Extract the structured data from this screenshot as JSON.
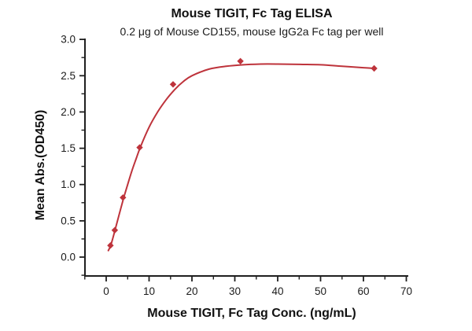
{
  "chart_data": {
    "type": "scatter",
    "title": "Mouse TIGIT, Fc Tag ELISA",
    "subtitle": "0.2 μg of Mouse CD155, mouse IgG2a Fc tag per well",
    "xlabel": "Mouse TIGIT, Fc Tag Conc. (ng/mL)",
    "ylabel": "Mean Abs.(OD450)",
    "xlim": [
      0,
      70
    ],
    "ylim": [
      0.0,
      3.0
    ],
    "grid": false,
    "legend": null,
    "x_major_ticks": [
      0,
      10,
      20,
      30,
      40,
      50,
      60,
      70
    ],
    "x_minor_ticks": [
      -5,
      5,
      15,
      25,
      35,
      45,
      55,
      65
    ],
    "y_major_ticks": [
      {
        "value": 0.0,
        "label": "0.0"
      },
      {
        "value": 0.5,
        "label": "0.5"
      },
      {
        "value": 1.0,
        "label": "1.0"
      },
      {
        "value": 1.5,
        "label": "1.5"
      },
      {
        "value": 2.0,
        "label": "2.0"
      },
      {
        "value": 2.5,
        "label": "2.5"
      },
      {
        "value": 3.0,
        "label": "3.0"
      }
    ],
    "y_minor_ticks": [
      -0.25,
      0.25,
      0.75,
      1.25,
      1.75,
      2.25,
      2.75
    ],
    "marker": "diamond",
    "points": [
      {
        "x": 1.0,
        "y": 0.16
      },
      {
        "x": 2.0,
        "y": 0.37
      },
      {
        "x": 3.9,
        "y": 0.82
      },
      {
        "x": 7.8,
        "y": 1.51
      },
      {
        "x": 15.6,
        "y": 2.38
      },
      {
        "x": 31.3,
        "y": 2.7
      },
      {
        "x": 62.5,
        "y": 2.6
      }
    ],
    "fit_curve": [
      [
        0.5,
        0.09
      ],
      [
        1,
        0.15
      ],
      [
        1.5,
        0.25
      ],
      [
        2,
        0.36
      ],
      [
        3,
        0.58
      ],
      [
        4,
        0.8
      ],
      [
        5,
        1.0
      ],
      [
        6,
        1.19
      ],
      [
        7,
        1.36
      ],
      [
        8,
        1.52
      ],
      [
        10,
        1.79
      ],
      [
        12,
        2.0
      ],
      [
        14,
        2.17
      ],
      [
        16,
        2.31
      ],
      [
        18,
        2.42
      ],
      [
        20,
        2.5
      ],
      [
        24,
        2.59
      ],
      [
        28,
        2.63
      ],
      [
        32,
        2.65
      ],
      [
        36,
        2.66
      ],
      [
        40,
        2.66
      ],
      [
        45,
        2.655
      ],
      [
        50,
        2.65
      ],
      [
        55,
        2.63
      ],
      [
        60,
        2.61
      ],
      [
        62.5,
        2.6
      ]
    ],
    "colors": {
      "series": "#BE333B",
      "axis": "#1f1f1f",
      "tick_text": "#1b1b1b"
    }
  }
}
